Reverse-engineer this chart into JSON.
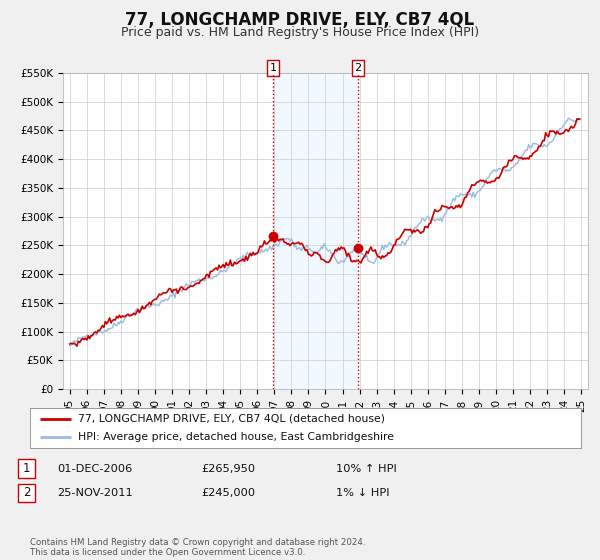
{
  "title": "77, LONGCHAMP DRIVE, ELY, CB7 4QL",
  "subtitle": "Price paid vs. HM Land Registry's House Price Index (HPI)",
  "ylim": [
    0,
    550000
  ],
  "yticks": [
    0,
    50000,
    100000,
    150000,
    200000,
    250000,
    300000,
    350000,
    400000,
    450000,
    500000,
    550000
  ],
  "ytick_labels": [
    "£0",
    "£50K",
    "£100K",
    "£150K",
    "£200K",
    "£250K",
    "£300K",
    "£350K",
    "£400K",
    "£450K",
    "£500K",
    "£550K"
  ],
  "line1_color": "#cc0000",
  "line2_color": "#99bbdd",
  "shading_color": "#ddeeff",
  "sale1_date_num": 2006.92,
  "sale1_value": 265950,
  "sale2_date_num": 2011.9,
  "sale2_value": 245000,
  "legend_line1": "77, LONGCHAMP DRIVE, ELY, CB7 4QL (detached house)",
  "legend_line2": "HPI: Average price, detached house, East Cambridgeshire",
  "footer": "Contains HM Land Registry data © Crown copyright and database right 2024.\nThis data is licensed under the Open Government Licence v3.0.",
  "background_color": "#f0f0f0",
  "plot_bg_color": "#ffffff",
  "grid_color": "#cccccc",
  "title_fontsize": 12,
  "subtitle_fontsize": 9,
  "tick_fontsize": 7.5
}
